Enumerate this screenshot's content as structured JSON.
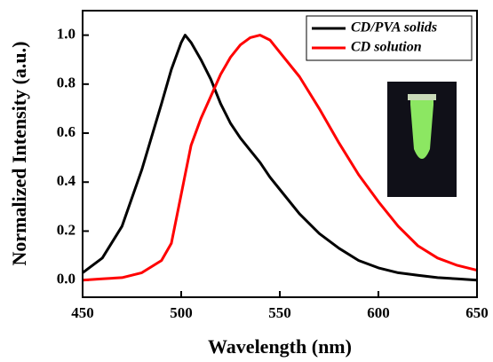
{
  "chart_data": {
    "type": "line",
    "x_label": "Wavelength (nm)",
    "y_label": "Normalized Intensity (a.u.)",
    "x": [
      450,
      460,
      470,
      480,
      490,
      495,
      500,
      502,
      505,
      510,
      515,
      520,
      525,
      530,
      535,
      540,
      545,
      550,
      560,
      570,
      580,
      590,
      600,
      610,
      620,
      630,
      640,
      650
    ],
    "series": [
      {
        "name": "CD/PVA solids",
        "color": "#000000",
        "values": [
          0.03,
          0.09,
          0.22,
          0.45,
          0.72,
          0.86,
          0.97,
          1.0,
          0.97,
          0.9,
          0.82,
          0.72,
          0.64,
          0.58,
          0.53,
          0.48,
          0.42,
          0.37,
          0.27,
          0.19,
          0.13,
          0.08,
          0.05,
          0.03,
          0.02,
          0.01,
          0.005,
          0.0
        ]
      },
      {
        "name": "CD solution",
        "color": "#ff0000",
        "values": [
          0.0,
          0.005,
          0.01,
          0.03,
          0.08,
          0.15,
          0.35,
          0.43,
          0.55,
          0.66,
          0.75,
          0.84,
          0.91,
          0.96,
          0.99,
          1.0,
          0.98,
          0.93,
          0.83,
          0.7,
          0.56,
          0.43,
          0.32,
          0.22,
          0.14,
          0.09,
          0.06,
          0.04
        ]
      }
    ],
    "xlim": [
      450,
      650
    ],
    "xticks": [
      450,
      500,
      550,
      600,
      650
    ],
    "ylim": [
      -0.07,
      1.1
    ],
    "yticks": [
      {
        "value": 0,
        "label": "0.0"
      },
      0.2,
      0.4,
      0.6,
      0.8,
      {
        "value": 1,
        "label": "1.0"
      }
    ],
    "legend": "upper right",
    "grid": false
  }
}
